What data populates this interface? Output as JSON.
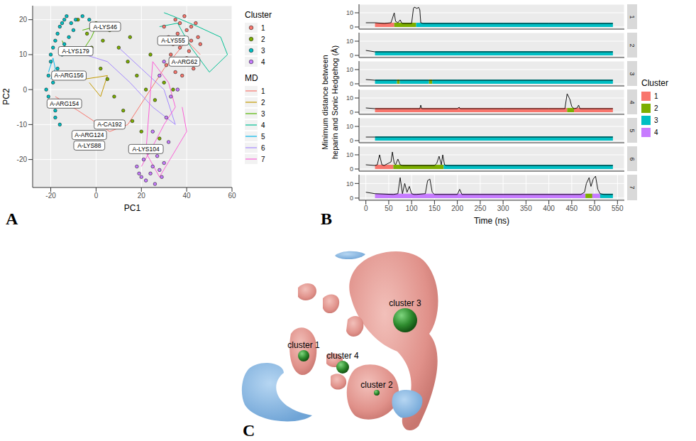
{
  "chart_data": [
    {
      "panel": "A",
      "type": "scatter",
      "x_label": "PC1",
      "y_label": "PC2",
      "xlim": [
        -28,
        60
      ],
      "xticks": [
        -20,
        0,
        20,
        40,
        60
      ],
      "ylim": [
        -28,
        24
      ],
      "yticks": [
        -20,
        -10,
        0,
        10,
        20
      ],
      "grid": true,
      "legend": "right",
      "series": [
        {
          "name": "1",
          "group": "MD",
          "type": "line",
          "color": "#F8766D",
          "x": [
            -18,
            -8,
            6,
            14,
            30,
            40,
            46
          ],
          "y": [
            -2,
            -6,
            -12,
            -10,
            6,
            14,
            10
          ]
        },
        {
          "name": "2",
          "group": "MD",
          "type": "line",
          "color": "#C49A00",
          "x": [
            -12,
            -5,
            5,
            2,
            -3
          ],
          "y": [
            5,
            3,
            4,
            -2,
            2
          ]
        },
        {
          "name": "3",
          "group": "MD",
          "type": "line",
          "color": "#53B400",
          "x": [
            -15,
            -12,
            -5,
            -2,
            0,
            -6
          ],
          "y": [
            14,
            10,
            12,
            15,
            18,
            17
          ]
        },
        {
          "name": "4",
          "group": "MD",
          "type": "line",
          "color": "#00C094",
          "x": [
            30,
            34,
            45,
            55,
            58,
            50,
            42,
            36,
            28
          ],
          "y": [
            22,
            21,
            18,
            15,
            10,
            5,
            12,
            19,
            18
          ]
        },
        {
          "name": "5",
          "group": "MD",
          "type": "line",
          "color": "#00B6EB",
          "x": [
            -20,
            -18,
            -19,
            -21
          ],
          "y": [
            3,
            6,
            9,
            5
          ]
        },
        {
          "name": "6",
          "group": "MD",
          "type": "line",
          "color": "#A58AFF",
          "x": [
            -5,
            5,
            15,
            25,
            35,
            30,
            20,
            10
          ],
          "y": [
            10,
            8,
            2,
            -5,
            -10,
            0,
            6,
            12
          ]
        },
        {
          "name": "7",
          "group": "MD",
          "type": "line",
          "color": "#FB61D7",
          "x": [
            20,
            26,
            30,
            35,
            32,
            25,
            22,
            28,
            40,
            38
          ],
          "y": [
            -22,
            -15,
            -10,
            -5,
            2,
            8,
            -18,
            -25,
            -12,
            -5
          ]
        },
        {
          "name": "1",
          "group": "Cluster",
          "type": "scatter",
          "color": "#F8766D",
          "x": [
            30,
            32,
            35,
            37,
            40,
            42,
            44,
            38,
            33,
            36,
            41,
            43,
            39,
            34,
            45,
            31,
            37,
            40,
            46,
            35,
            42,
            38
          ],
          "y": [
            18,
            15,
            20,
            12,
            17,
            14,
            19,
            8,
            10,
            16,
            11,
            6,
            21,
            13,
            15,
            7,
            19,
            9,
            13,
            5,
            18,
            4
          ]
        },
        {
          "name": "2",
          "group": "Cluster",
          "type": "scatter",
          "color": "#7CAE00",
          "x": [
            -8,
            -4,
            0,
            3,
            6,
            10,
            14,
            18,
            22,
            26,
            30,
            2,
            8,
            12,
            16,
            20,
            24,
            -2,
            28,
            34,
            15,
            5
          ],
          "y": [
            20,
            16,
            19,
            14,
            17,
            12,
            8,
            4,
            0,
            -3,
            2,
            6,
            -2,
            -6,
            -9,
            -12,
            10,
            12,
            -14,
            0,
            15,
            3
          ]
        },
        {
          "name": "3",
          "group": "Cluster",
          "type": "scatter",
          "color": "#00BFC4",
          "x": [
            -22,
            -21,
            -20,
            -19,
            -18,
            -17,
            -16,
            -15,
            -14,
            -13,
            -20,
            -18,
            -16,
            -21,
            -19,
            -17,
            -15,
            -12,
            -10,
            -14,
            -11,
            -9,
            -6,
            -3,
            -18,
            -20
          ],
          "y": [
            0,
            4,
            8,
            12,
            14,
            16,
            18,
            19,
            20,
            21,
            -4,
            -8,
            -10,
            -2,
            2,
            6,
            10,
            15,
            17,
            13,
            19,
            20,
            21,
            20,
            -6,
            10
          ]
        },
        {
          "name": "4",
          "group": "Cluster",
          "type": "scatter",
          "color": "#C77CFF",
          "x": [
            18,
            20,
            22,
            24,
            26,
            28,
            30,
            21,
            25,
            29,
            23,
            27,
            19,
            32,
            31,
            33,
            28,
            36,
            25,
            30
          ],
          "y": [
            -22,
            -25,
            -26,
            -24,
            -27,
            -23,
            -21,
            -20,
            -22,
            -25,
            -18,
            -19,
            -24,
            -15,
            -8,
            -2,
            4,
            0,
            -12,
            8
          ]
        }
      ],
      "annotations": [
        {
          "text": "A-LYS46",
          "x": 4,
          "y": 18
        },
        {
          "text": "A-LYS55",
          "x": 34,
          "y": 14
        },
        {
          "text": "A-ARG62",
          "x": 39,
          "y": 8
        },
        {
          "text": "A-LYS179",
          "x": -9,
          "y": 11
        },
        {
          "text": "A-ARG156",
          "x": -12,
          "y": 4
        },
        {
          "text": "A-ARG154",
          "x": -14,
          "y": -4
        },
        {
          "text": "A-CA192",
          "x": 6,
          "y": -10
        },
        {
          "text": "A-ARG124",
          "x": -3,
          "y": -13
        },
        {
          "text": "A-LYS88",
          "x": -3,
          "y": -16
        },
        {
          "text": "A-LYS104",
          "x": 22,
          "y": -17
        }
      ]
    },
    {
      "panel": "B",
      "type": "line",
      "x_label": "Time (ns)",
      "y_label": "Minimum distance between heparin and Sonic Hedgehog (Å)",
      "xlim": [
        -15,
        565
      ],
      "xticks": [
        0,
        50,
        100,
        150,
        200,
        250,
        300,
        350,
        400,
        450,
        500,
        550
      ],
      "ylim": [
        -1.5,
        16
      ],
      "yticks": [
        0,
        10
      ],
      "grid": true,
      "legend": "right",
      "legend_title": "Cluster",
      "color": "#000000",
      "band": [
        0,
        3
      ],
      "clusters": [
        {
          "name": "1",
          "color": "#F8766D"
        },
        {
          "name": "2",
          "color": "#7CAE00"
        },
        {
          "name": "3",
          "color": "#00BFC4"
        },
        {
          "name": "4",
          "color": "#C77CFF"
        }
      ],
      "facets": [
        {
          "name": "1",
          "x": [
            0,
            20,
            40,
            55,
            60,
            62,
            65,
            70,
            75,
            78,
            80,
            100,
            104,
            106,
            112,
            115,
            118,
            120,
            125,
            200,
            300,
            400,
            540
          ],
          "y": [
            3,
            3,
            2.5,
            3,
            8,
            10,
            4,
            3,
            5,
            3,
            2.5,
            2.5,
            13,
            14,
            13,
            14,
            12,
            3,
            2.5,
            2.5,
            2.5,
            2.5,
            2.5
          ],
          "segments": [
            {
              "start": 20,
              "end": 62,
              "cluster": "1"
            },
            {
              "start": 62,
              "end": 110,
              "cluster": "2"
            },
            {
              "start": 110,
              "end": 540,
              "cluster": "3"
            }
          ]
        },
        {
          "name": "2",
          "x": [
            0,
            10,
            20,
            100,
            200,
            300,
            400,
            540
          ],
          "y": [
            3.5,
            3,
            2.5,
            2.5,
            2.5,
            2.5,
            2.5,
            2.5
          ],
          "segments": [
            {
              "start": 20,
              "end": 540,
              "cluster": "3"
            }
          ]
        },
        {
          "name": "3",
          "x": [
            0,
            20,
            100,
            200,
            300,
            400,
            540
          ],
          "y": [
            3,
            2.5,
            2.5,
            2.5,
            2.5,
            2.5,
            2.5
          ],
          "segments": [
            {
              "start": 20,
              "end": 68,
              "cluster": "3"
            },
            {
              "start": 68,
              "end": 74,
              "cluster": "2"
            },
            {
              "start": 74,
              "end": 138,
              "cluster": "3"
            },
            {
              "start": 138,
              "end": 145,
              "cluster": "2"
            },
            {
              "start": 145,
              "end": 540,
              "cluster": "3"
            }
          ]
        },
        {
          "name": "4",
          "x": [
            0,
            20,
            100,
            118,
            120,
            122,
            200,
            204,
            206,
            300,
            400,
            435,
            440,
            443,
            446,
            450,
            455,
            462,
            465,
            468,
            500,
            540
          ],
          "y": [
            3,
            2.5,
            2.5,
            2.5,
            5,
            2.5,
            2.5,
            3.5,
            2.5,
            2.5,
            2.5,
            2.5,
            13,
            11,
            9,
            4,
            2.5,
            3,
            5,
            2.5,
            2.5,
            2.5
          ],
          "segments": [
            {
              "start": 20,
              "end": 440,
              "cluster": "1"
            },
            {
              "start": 440,
              "end": 455,
              "cluster": "2"
            },
            {
              "start": 455,
              "end": 540,
              "cluster": "1"
            }
          ]
        },
        {
          "name": "5",
          "x": [
            0,
            20,
            100,
            300,
            540
          ],
          "y": [
            2.5,
            2.5,
            2.5,
            2.5,
            2.5
          ],
          "segments": [
            {
              "start": 20,
              "end": 540,
              "cluster": "3"
            }
          ]
        },
        {
          "name": "6",
          "x": [
            0,
            20,
            25,
            30,
            35,
            40,
            55,
            58,
            62,
            65,
            70,
            75,
            80,
            100,
            150,
            155,
            160,
            165,
            168,
            172,
            176,
            180,
            300,
            540
          ],
          "y": [
            3,
            2.5,
            3,
            10,
            3,
            2.5,
            5,
            12,
            4,
            3,
            7,
            3,
            2.5,
            2.5,
            2.5,
            4,
            9,
            3,
            10,
            3,
            2.5,
            2.5,
            2.5,
            2.5
          ],
          "segments": [
            {
              "start": 20,
              "end": 60,
              "cluster": "1"
            },
            {
              "start": 60,
              "end": 170,
              "cluster": "2"
            },
            {
              "start": 170,
              "end": 540,
              "cluster": "3"
            }
          ]
        },
        {
          "name": "7",
          "x": [
            0,
            20,
            60,
            70,
            75,
            80,
            85,
            90,
            95,
            100,
            105,
            110,
            130,
            135,
            140,
            145,
            150,
            200,
            205,
            210,
            300,
            470,
            478,
            482,
            488,
            492,
            497,
            502,
            507,
            512,
            520,
            540
          ],
          "y": [
            4,
            3,
            2.5,
            3,
            14,
            3,
            10,
            4,
            8,
            3,
            2.5,
            2.5,
            3,
            12,
            13,
            4,
            2.5,
            2.5,
            6,
            2.5,
            2.5,
            2.5,
            4,
            10,
            14,
            8,
            13,
            15,
            6,
            3,
            2.5,
            2.5
          ],
          "segments": [
            {
              "start": 20,
              "end": 480,
              "cluster": "4"
            },
            {
              "start": 480,
              "end": 495,
              "cluster": "2"
            },
            {
              "start": 495,
              "end": 512,
              "cluster": "4"
            },
            {
              "start": 512,
              "end": 540,
              "cluster": "3"
            }
          ]
        }
      ]
    }
  ],
  "panel_C": {
    "panel": "C",
    "labels": [
      "cluster 1",
      "cluster 2",
      "cluster 3",
      "cluster 4"
    ]
  }
}
